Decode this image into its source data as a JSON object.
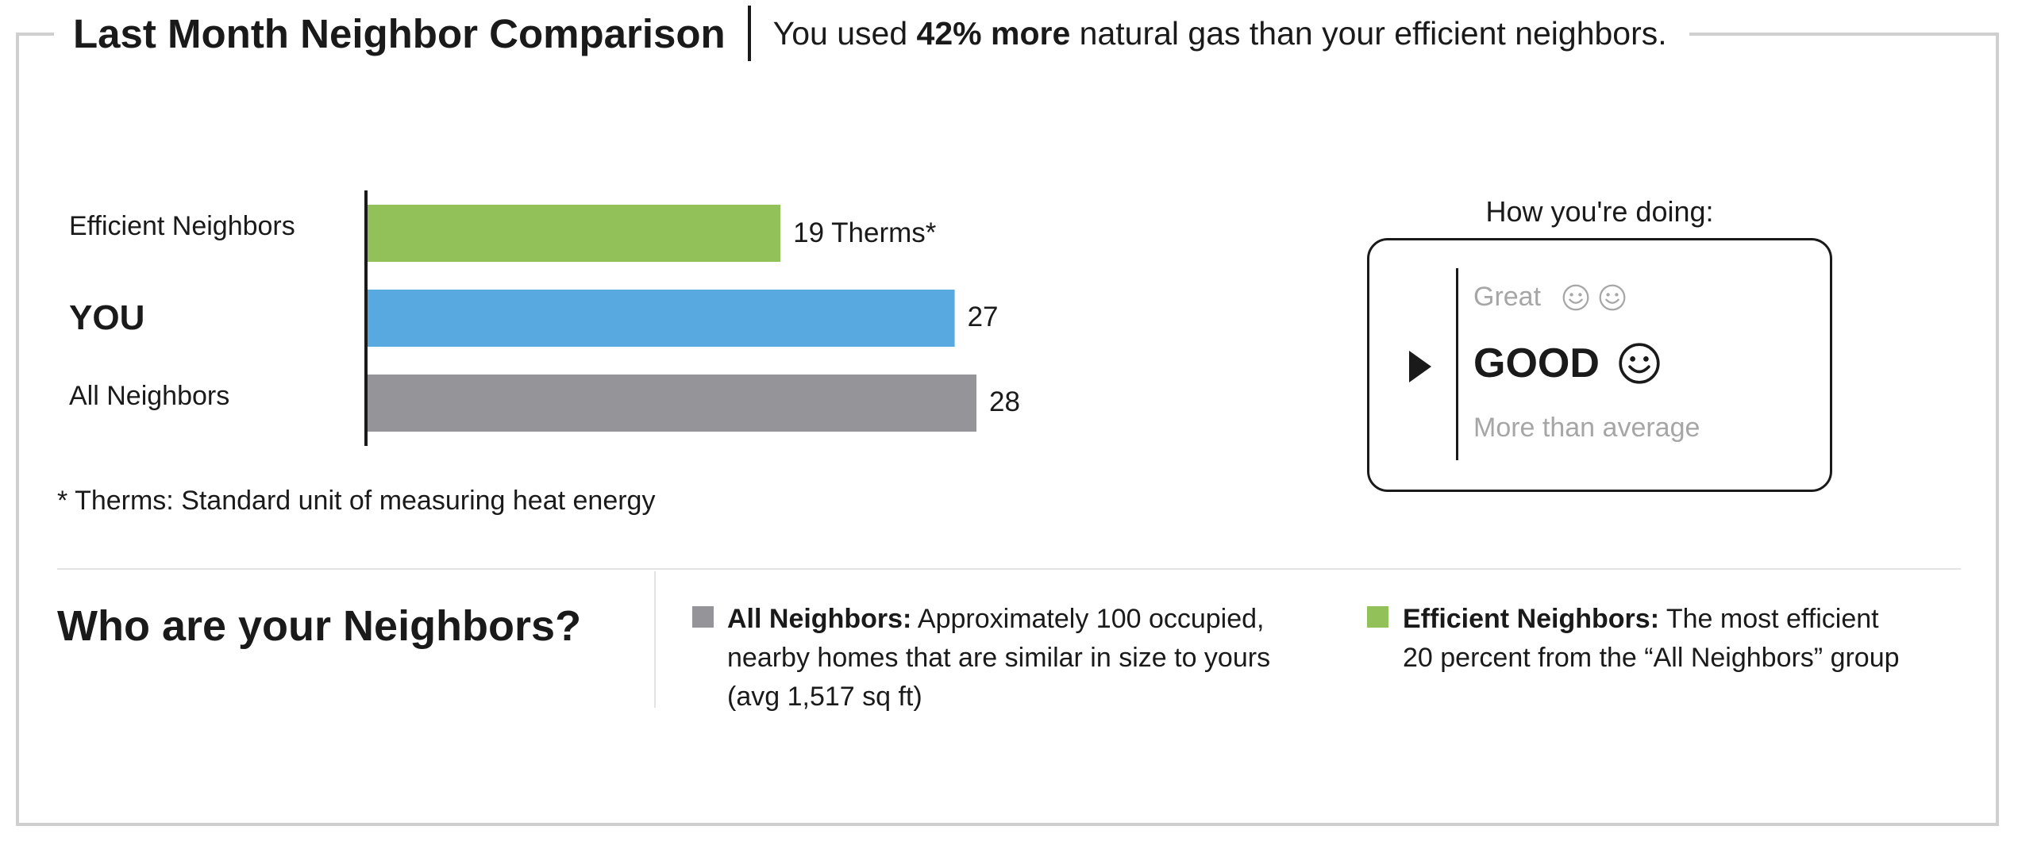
{
  "header": {
    "title": "Last Month Neighbor Comparison",
    "subtitle_pre": "You used ",
    "subtitle_bold": "42% more",
    "subtitle_post": " natural gas than your efficient neighbors."
  },
  "chart_data": {
    "type": "bar",
    "orientation": "horizontal",
    "categories": [
      "Efficient Neighbors",
      "YOU",
      "All Neighbors"
    ],
    "values": [
      19,
      27,
      28
    ],
    "value_labels": [
      "19 Therms*",
      "27",
      "28"
    ],
    "colors": [
      "#93c159",
      "#58a9df",
      "#959599"
    ],
    "xlim": [
      0,
      28
    ],
    "grid": false,
    "footnote": "* Therms: Standard unit of measuring heat energy"
  },
  "doing": {
    "title": "How you're doing:",
    "great": "Great",
    "good": "GOOD",
    "more": "More than average",
    "great_icons": [
      "smiley-icon",
      "smiley-icon"
    ],
    "good_icon": "smiley-icon"
  },
  "neighbors": {
    "title": "Who are your Neighbors?",
    "all_label": "All Neighbors:",
    "all_line1": " Approximately 100 occupied,",
    "all_line2": "nearby homes that are similar in size to yours",
    "all_line3": "(avg 1,517 sq ft)",
    "all_color": "#959599",
    "eff_label": "Efficient Neighbors:",
    "eff_line1": " The most efficient",
    "eff_line2": "20 percent from the “All Neighbors” group",
    "eff_color": "#93c159"
  }
}
